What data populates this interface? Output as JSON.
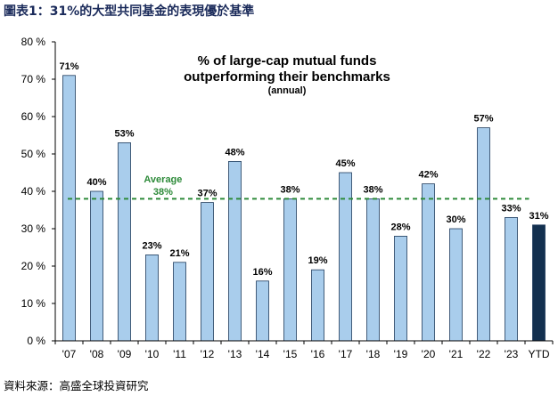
{
  "figure_title": "圖表1：31%的大型共同基金的表現優於基準",
  "source": "資料來源：高盛全球投資研究",
  "chart_data": {
    "type": "bar",
    "title": "% of large-cap mutual funds",
    "title_line2": "outperforming their benchmarks",
    "subtitle": "(annual)",
    "xlabel": "",
    "ylabel": "",
    "ylim": [
      0,
      80
    ],
    "yticks": [
      0,
      10,
      20,
      30,
      40,
      50,
      60,
      70,
      80
    ],
    "ytick_labels": [
      "0 %",
      "10 %",
      "20 %",
      "30 %",
      "40 %",
      "50 %",
      "60 %",
      "70 %",
      "80 %"
    ],
    "categories": [
      "'07",
      "'08",
      "'09",
      "'10",
      "'11",
      "'12",
      "'13",
      "'14",
      "'15",
      "'16",
      "'17",
      "'18",
      "'19",
      "'20",
      "'21",
      "'22",
      "'23",
      "YTD"
    ],
    "values": [
      71,
      40,
      53,
      23,
      21,
      37,
      48,
      16,
      38,
      19,
      45,
      38,
      28,
      42,
      30,
      57,
      33,
      31
    ],
    "value_labels": [
      "71%",
      "40%",
      "53%",
      "23%",
      "21%",
      "37%",
      "48%",
      "16%",
      "38%",
      "19%",
      "45%",
      "38%",
      "28%",
      "42%",
      "30%",
      "57%",
      "33%",
      "31%"
    ],
    "average": 38,
    "average_label": "Average",
    "average_value_label": "38%",
    "grid": false,
    "legend": "none",
    "colors": {
      "bar": "#a9cdec",
      "bar_highlight": "#13304f",
      "bar_edge": "#1f3b5c",
      "average_line": "#2e8b3a",
      "figure_title": "#1a2a5a"
    }
  }
}
